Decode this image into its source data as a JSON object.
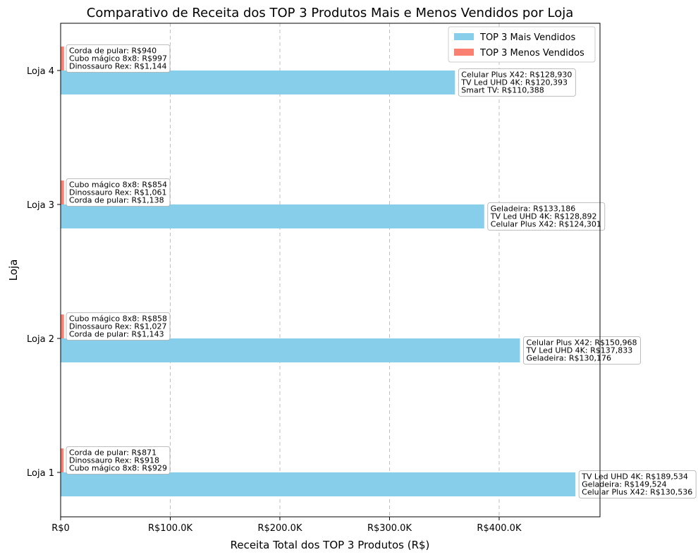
{
  "chart_data": {
    "type": "bar",
    "orientation": "horizontal",
    "title": "Comparativo de Receita dos TOP 3 Produtos Mais e Menos Vendidos por Loja",
    "xlabel": "Receita Total dos TOP 3 Produtos (R$)",
    "ylabel": "Loja",
    "xlim": [
      0,
      492000
    ],
    "x_ticks": [
      0,
      100000,
      200000,
      300000,
      400000
    ],
    "x_tick_labels": [
      "R$0",
      "R$100.0K",
      "R$200.0K",
      "R$300.0K",
      "R$400.0K"
    ],
    "grid": "x-dashed",
    "legend_position": "top-right",
    "categories": [
      "Loja 1",
      "Loja 2",
      "Loja 3",
      "Loja 4"
    ],
    "series": [
      {
        "name": "TOP 3 Mais Vendidos",
        "color": "#87ceeb",
        "values": [
          469594,
          418977,
          386379,
          359711
        ],
        "annotations": [
          [
            "TV Led UHD 4K: R$189,534",
            "Geladeira: R$149,524",
            "Celular Plus X42: R$130,536"
          ],
          [
            "Celular Plus X42: R$150,968",
            "TV Led UHD 4K: R$137,833",
            "Geladeira: R$130,176"
          ],
          [
            "Geladeira: R$133,186",
            "TV Led UHD 4K: R$128,892",
            "Celular Plus X42: R$124,301"
          ],
          [
            "Celular Plus X42: R$128,930",
            "TV Led UHD 4K: R$120,393",
            "Smart TV: R$110,388"
          ]
        ]
      },
      {
        "name": "TOP 3 Menos Vendidos",
        "color": "#fa8072",
        "values": [
          2718,
          3028,
          3053,
          3081
        ],
        "annotations": [
          [
            "Corda de pular: R$871",
            "Dinossauro Rex: R$918",
            "Cubo mágico 8x8: R$929"
          ],
          [
            "Cubo mágico 8x8: R$858",
            "Dinossauro Rex: R$1,027",
            "Corda de pular: R$1,143"
          ],
          [
            "Cubo mágico 8x8: R$854",
            "Dinossauro Rex: R$1,061",
            "Corda de pular: R$1,138"
          ],
          [
            "Corda de pular: R$940",
            "Cubo mágico 8x8: R$997",
            "Dinossauro Rex: R$1,144"
          ]
        ]
      }
    ]
  }
}
